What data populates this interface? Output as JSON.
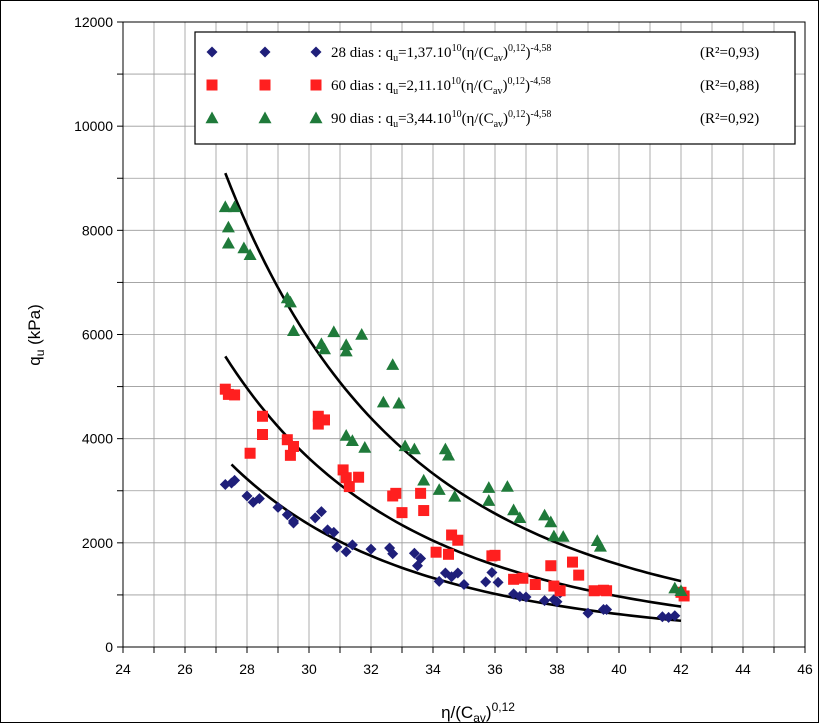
{
  "chart_data": {
    "type": "scatter",
    "xlim": [
      24,
      46
    ],
    "ylim": [
      0,
      12000
    ],
    "x_ticks": [
      "24",
      "26",
      "28",
      "30",
      "32",
      "34",
      "36",
      "38",
      "40",
      "42",
      "44",
      "46"
    ],
    "y_ticks": [
      "0",
      "2000",
      "4000",
      "6000",
      "8000",
      "10000",
      "12000"
    ],
    "grid": true,
    "legend_position": "top-right",
    "xlabel": {
      "main": "η/(C",
      "sub": "av",
      "close": ")",
      "sup": "0,12"
    },
    "ylabel": {
      "main": "q",
      "sub": "u",
      "rest": " (kPa)"
    },
    "series": [
      {
        "name": "28 dias",
        "color": "#1f1f7a",
        "marker": "diamond",
        "equation": {
          "label": "28 dias : q",
          "sub": "u",
          "mid1": "=1,37.10",
          "sup1": "10",
          "mid2": "(η/(C",
          "sub2": "av",
          "mid3": ")",
          "sup2": "0,12",
          "mid4": ")",
          "sup3": "-4,58"
        },
        "r2": "(R²=0,93)",
        "coef": 13700000000.0,
        "exponent": -4.58,
        "fit_x": [
          27.5,
          42
        ],
        "points": [
          [
            27.3,
            3120
          ],
          [
            27.5,
            3150
          ],
          [
            27.6,
            3200
          ],
          [
            28,
            2900
          ],
          [
            28.2,
            2780
          ],
          [
            28.4,
            2850
          ],
          [
            29,
            2680
          ],
          [
            29.3,
            2540
          ],
          [
            29.5,
            2420
          ],
          [
            29.5,
            2380
          ],
          [
            30.2,
            2480
          ],
          [
            30.4,
            2600
          ],
          [
            30.6,
            2250
          ],
          [
            30.8,
            2200
          ],
          [
            30.9,
            1920
          ],
          [
            31.2,
            1830
          ],
          [
            31.4,
            1960
          ],
          [
            32,
            1880
          ],
          [
            32.6,
            1900
          ],
          [
            32.7,
            1790
          ],
          [
            33.4,
            1800
          ],
          [
            33.5,
            1560
          ],
          [
            33.6,
            1700
          ],
          [
            34.2,
            1260
          ],
          [
            34.4,
            1420
          ],
          [
            34.6,
            1350
          ],
          [
            34.8,
            1420
          ],
          [
            35,
            1200
          ],
          [
            35.7,
            1250
          ],
          [
            35.9,
            1430
          ],
          [
            36.1,
            1240
          ],
          [
            36.6,
            1020
          ],
          [
            36.8,
            970
          ],
          [
            37,
            960
          ],
          [
            37.6,
            890
          ],
          [
            37.9,
            910
          ],
          [
            38.1,
            1040
          ],
          [
            38,
            870
          ],
          [
            39,
            650
          ],
          [
            39.5,
            720
          ],
          [
            39.6,
            720
          ],
          [
            41.4,
            580
          ],
          [
            41.6,
            570
          ],
          [
            41.8,
            600
          ]
        ]
      },
      {
        "name": "60 dias",
        "color": "#ff1f1f",
        "marker": "square",
        "equation": {
          "label": "60 dias : q",
          "sub": "u",
          "mid1": "=2,11.10",
          "sup1": "10",
          "mid2": "(η/(C",
          "sub2": "av",
          "mid3": ")",
          "sup2": "0,12",
          "mid4": ")",
          "sup3": "-4,58"
        },
        "r2": "(R²=0,88)",
        "coef": 21100000000.0,
        "exponent": -4.58,
        "fit_x": [
          27.3,
          42
        ],
        "points": [
          [
            27.3,
            4950
          ],
          [
            27.4,
            4850
          ],
          [
            27.6,
            4840
          ],
          [
            28.1,
            3720
          ],
          [
            28.5,
            4430
          ],
          [
            28.5,
            4080
          ],
          [
            29.3,
            3980
          ],
          [
            29.4,
            3680
          ],
          [
            29.5,
            3850
          ],
          [
            30.3,
            4430
          ],
          [
            30.3,
            4280
          ],
          [
            30.5,
            4360
          ],
          [
            31.1,
            3400
          ],
          [
            31.2,
            3250
          ],
          [
            31.3,
            3080
          ],
          [
            31.6,
            3260
          ],
          [
            32.7,
            2900
          ],
          [
            32.8,
            2950
          ],
          [
            33,
            2580
          ],
          [
            33.6,
            2950
          ],
          [
            33.7,
            2620
          ],
          [
            34.1,
            1820
          ],
          [
            34.5,
            1780
          ],
          [
            34.6,
            2150
          ],
          [
            34.8,
            2050
          ],
          [
            35.9,
            1750
          ],
          [
            36,
            1760
          ],
          [
            36.6,
            1300
          ],
          [
            36.9,
            1320
          ],
          [
            37.3,
            1200
          ],
          [
            37.8,
            1560
          ],
          [
            37.9,
            1170
          ],
          [
            38.1,
            1080
          ],
          [
            38.5,
            1630
          ],
          [
            38.7,
            1380
          ],
          [
            39.2,
            1080
          ],
          [
            39.5,
            1090
          ],
          [
            39.6,
            1080
          ],
          [
            42,
            1050
          ],
          [
            42.1,
            980
          ]
        ]
      },
      {
        "name": "90 dias",
        "color": "#1f7a3a",
        "marker": "triangle",
        "equation": {
          "label": "90 dias : q",
          "sub": "u",
          "mid1": "=3,44.10",
          "sup1": "10",
          "mid2": "(η/(C",
          "sub2": "av",
          "mid3": ")",
          "sup2": "0,12",
          "mid4": ")",
          "sup3": "-4,58"
        },
        "r2": "(R²=0,92)",
        "coef": 34400000000.0,
        "exponent": -4.58,
        "fit_x": [
          27.3,
          42
        ],
        "points": [
          [
            27.3,
            8450
          ],
          [
            27.6,
            8450
          ],
          [
            27.4,
            8060
          ],
          [
            27.4,
            7750
          ],
          [
            27.9,
            7660
          ],
          [
            28.1,
            7530
          ],
          [
            29.3,
            6700
          ],
          [
            29.4,
            6620
          ],
          [
            29.5,
            6070
          ],
          [
            30.4,
            5820
          ],
          [
            30.5,
            5720
          ],
          [
            30.8,
            6050
          ],
          [
            31.2,
            5800
          ],
          [
            31.2,
            5680
          ],
          [
            31.7,
            6000
          ],
          [
            31.2,
            4060
          ],
          [
            31.4,
            3960
          ],
          [
            31.8,
            3830
          ],
          [
            32.4,
            4700
          ],
          [
            32.7,
            5420
          ],
          [
            32.9,
            4680
          ],
          [
            33.1,
            3860
          ],
          [
            33.4,
            3800
          ],
          [
            33.7,
            3200
          ],
          [
            34.2,
            3020
          ],
          [
            34.4,
            3800
          ],
          [
            34.5,
            3680
          ],
          [
            34.7,
            2890
          ],
          [
            35.8,
            3060
          ],
          [
            35.8,
            2810
          ],
          [
            36.4,
            3080
          ],
          [
            36.6,
            2630
          ],
          [
            36.8,
            2480
          ],
          [
            37.6,
            2530
          ],
          [
            37.8,
            2400
          ],
          [
            37.9,
            2130
          ],
          [
            38.2,
            2120
          ],
          [
            39.3,
            2040
          ],
          [
            39.4,
            1930
          ],
          [
            41.8,
            1130
          ],
          [
            42,
            1080
          ]
        ]
      }
    ]
  }
}
